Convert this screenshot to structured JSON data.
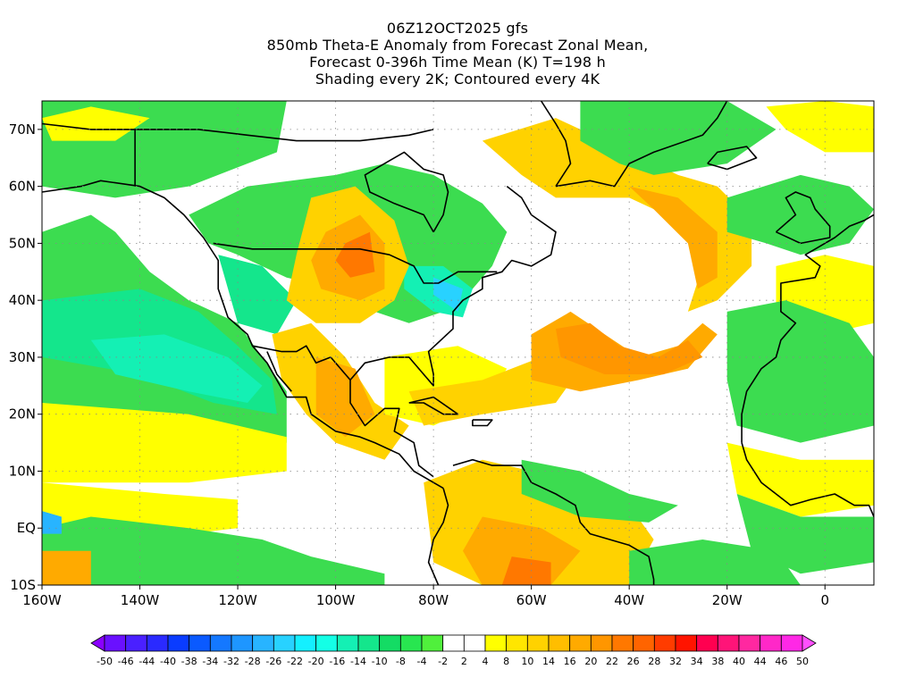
{
  "title": {
    "line1": "06Z12OCT2025 gfs",
    "line2": "850mb Theta-E Anomaly from Forecast Zonal Mean,",
    "line3": "Forecast 0-396h Time Mean (K) T=198 h",
    "line4": "Shading every 2K; Contoured every 4K"
  },
  "axes": {
    "lon_labels": [
      "160W",
      "140W",
      "120W",
      "100W",
      "80W",
      "60W",
      "40W",
      "20W",
      "0"
    ],
    "lat_labels": [
      "70N",
      "60N",
      "50N",
      "40N",
      "30N",
      "20N",
      "10N",
      "EQ",
      "10S"
    ]
  },
  "colorbar": {
    "labels": [
      "-50",
      "-46",
      "-44",
      "-40",
      "-38",
      "-34",
      "-32",
      "-28",
      "-26",
      "-22",
      "-20",
      "-16",
      "-14",
      "-10",
      "-8",
      "-4",
      "-2",
      "2",
      "4",
      "8",
      "10",
      "14",
      "16",
      "20",
      "22",
      "26",
      "28",
      "32",
      "34",
      "38",
      "40",
      "44",
      "46",
      "50"
    ],
    "colors": [
      "#8a00ff",
      "#6a10ff",
      "#4a20ff",
      "#2a2aff",
      "#0a3cff",
      "#0a5aff",
      "#1478ff",
      "#1e96ff",
      "#28b4ff",
      "#28d2ff",
      "#14f0ff",
      "#14ffe6",
      "#14f0b4",
      "#14e68c",
      "#14dc64",
      "#28e650",
      "#50f03c",
      "#ffffff",
      "#ffffff",
      "#ffff00",
      "#ffe600",
      "#ffd200",
      "#ffbe00",
      "#ffaa00",
      "#ff9600",
      "#ff7800",
      "#ff6400",
      "#ff3c00",
      "#ff1400",
      "#ff0050",
      "#ff1478",
      "#ff28a0",
      "#ff28c8",
      "#ff28e6",
      "#ff50ff"
    ]
  },
  "map_colors": {
    "light_green": "#5ae65a",
    "green": "#3cdc50",
    "teal_green": "#14e68c",
    "aqua": "#14f0b4",
    "cyan": "#28d2ff",
    "light_blue": "#28b4ff",
    "yellow": "#ffff00",
    "gold": "#ffd200",
    "light_orange": "#ffbe00",
    "orange": "#ffaa00",
    "dark_orange": "#ff9600",
    "red_orange": "#ff7800",
    "red": "#ff6400"
  }
}
